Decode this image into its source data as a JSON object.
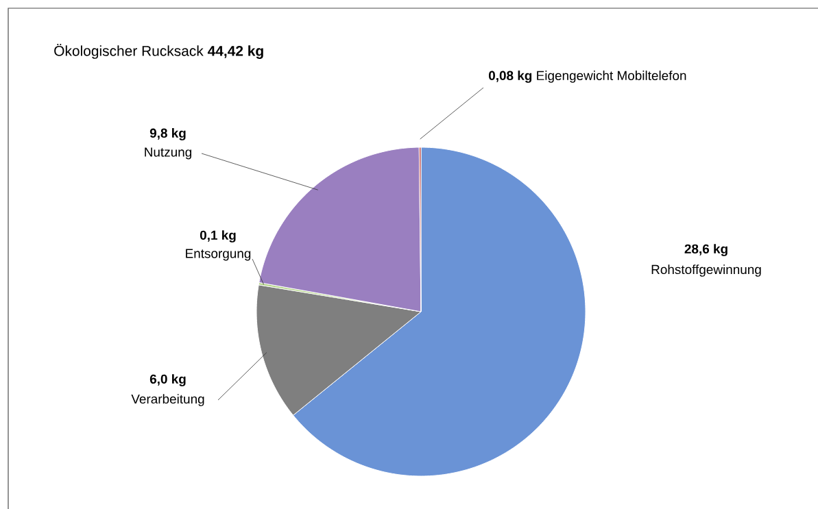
{
  "chart_data": {
    "type": "pie",
    "title": "Ökologischer Rucksack **44,42 kg**",
    "categories": [
      "Rohstoffgewinnung",
      "Verarbeitung",
      "Entsorgung",
      "Nutzung",
      "Eigengewicht Mobiltelefon"
    ],
    "values": [
      28.6,
      6.0,
      0.1,
      9.8,
      0.08
    ],
    "colors": [
      "#6a93d6",
      "#7f7f7f",
      "#b5d48a",
      "#9a7fc0",
      "#c0504d"
    ],
    "value_labels": [
      "28,6 kg",
      "6,0 kg",
      "0,1 kg",
      "9,8 kg",
      "0,08 kg"
    ]
  }
}
